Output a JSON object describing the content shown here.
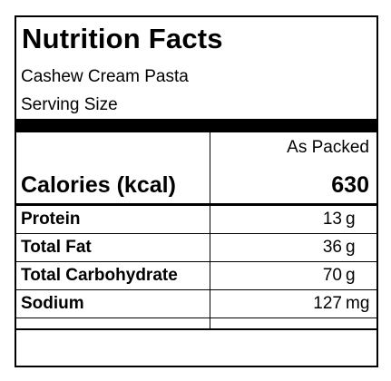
{
  "label": {
    "title": "Nutrition Facts",
    "product_name": "Cashew Cream Pasta",
    "serving_size_label": "Serving Size",
    "column_header": "As Packed",
    "calories": {
      "label": "Calories (kcal)",
      "value": "630"
    },
    "nutrients": [
      {
        "name": "Protein",
        "amount": "13",
        "unit": "g"
      },
      {
        "name": "Total Fat",
        "amount": "36",
        "unit": "g"
      },
      {
        "name": "Total Carbohydrate",
        "amount": "70",
        "unit": "g"
      },
      {
        "name": "Sodium",
        "amount": "127",
        "unit": "mg"
      }
    ]
  },
  "colors": {
    "text": "#000000",
    "background": "#ffffff",
    "rule": "#000000"
  }
}
